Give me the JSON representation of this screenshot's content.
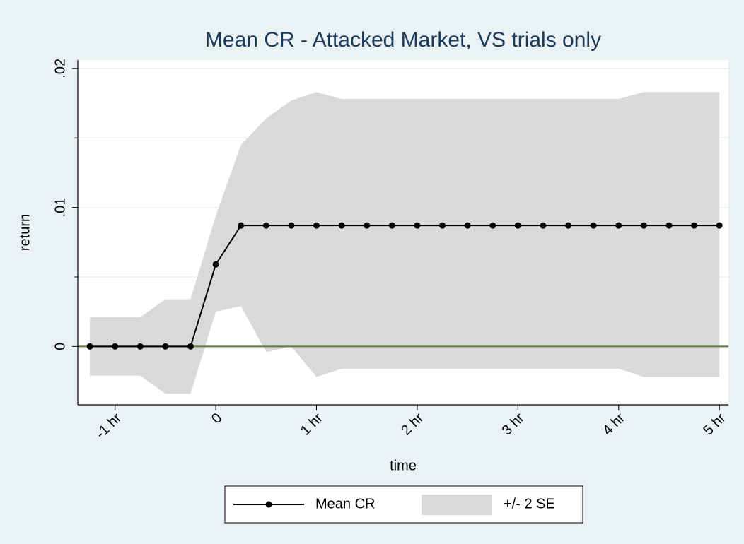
{
  "chart_data": {
    "type": "line_band",
    "title": "Mean CR - Attacked Market, VS trials only",
    "xlabel": "time",
    "ylabel": "return",
    "x": [
      -1.25,
      -1,
      -0.75,
      -0.5,
      -0.25,
      0,
      0.25,
      0.5,
      0.75,
      1,
      1.25,
      1.5,
      1.75,
      2,
      2.25,
      2.5,
      2.75,
      3,
      3.25,
      3.5,
      3.75,
      4,
      4.25,
      4.5,
      4.75,
      5
    ],
    "series": [
      {
        "name": "Mean CR",
        "color": "#000000",
        "values": [
          0,
          0,
          0,
          0,
          0,
          0.0059,
          0.0087,
          0.0087,
          0.0087,
          0.0087,
          0.0087,
          0.0087,
          0.0087,
          0.0087,
          0.0087,
          0.0087,
          0.0087,
          0.0087,
          0.0087,
          0.0087,
          0.0087,
          0.0087,
          0.0087,
          0.0087,
          0.0087,
          0.0087
        ]
      },
      {
        "name": "+/- 2 SE",
        "color": "#d9d9d9",
        "upper": [
          0.0021,
          0.0021,
          0.0021,
          0.0034,
          0.0034,
          0.0094,
          0.0145,
          0.0164,
          0.0177,
          0.0183,
          0.0178,
          0.0178,
          0.0178,
          0.0178,
          0.0178,
          0.0178,
          0.0178,
          0.0178,
          0.0178,
          0.0178,
          0.0178,
          0.0178,
          0.0183,
          0.0183,
          0.0183,
          0.0183
        ],
        "lower": [
          -0.0021,
          -0.0021,
          -0.0021,
          -0.0034,
          -0.0034,
          0.0025,
          0.0029,
          -0.0004,
          0,
          -0.0022,
          -0.0016,
          -0.0016,
          -0.0016,
          -0.0016,
          -0.0016,
          -0.0016,
          -0.0016,
          -0.0016,
          -0.0016,
          -0.0016,
          -0.0016,
          -0.0016,
          -0.0022,
          -0.0022,
          -0.0022,
          -0.0022
        ]
      }
    ],
    "xlim": [
      -1.37,
      5.09
    ],
    "xticks": [
      {
        "value": -1,
        "label": "-1 hr"
      },
      0,
      {
        "value": 1,
        "label": "1 hr"
      },
      {
        "value": 2,
        "label": "2 hr"
      },
      {
        "value": 3,
        "label": "3 hr"
      },
      {
        "value": 4,
        "label": "4 hr"
      },
      {
        "value": 5,
        "label": "5 hr"
      }
    ],
    "ylim": [
      -0.0042,
      0.0206
    ],
    "yticks": [
      0,
      {
        "value": 0.01,
        "label": ".01"
      },
      {
        "value": 0.02,
        "label": ".02"
      }
    ],
    "yminorticks": [
      0.005,
      0.015
    ],
    "yline": 0,
    "yline_color": "#5a7f2b",
    "grid": true,
    "legend": "bottom"
  }
}
